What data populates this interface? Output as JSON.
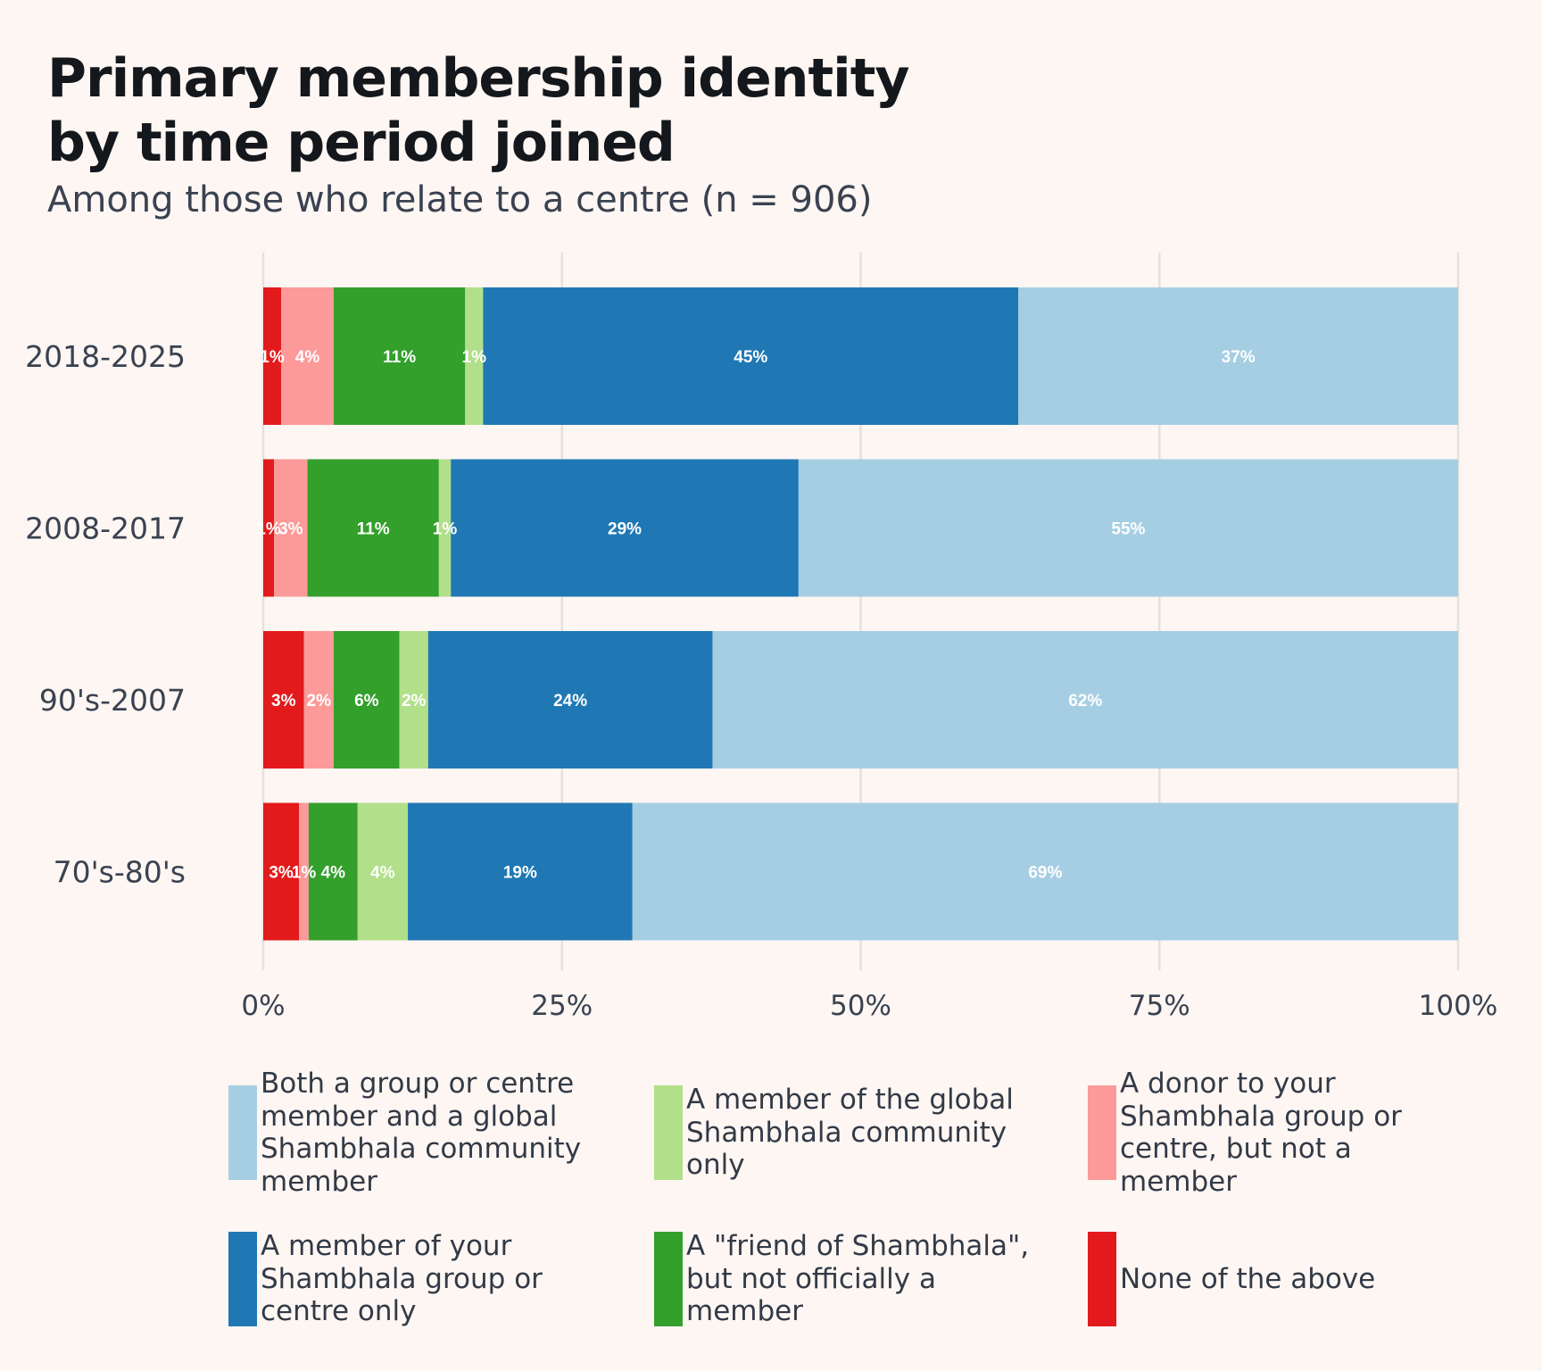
{
  "title_line1": "Primary membership identity",
  "title_line2": "by time period joined",
  "subtitle": "Among those who relate to a centre (n = 906)",
  "chart_data": {
    "type": "bar",
    "orientation": "horizontal",
    "stacked": "percent",
    "title": "Primary membership identity by time period joined",
    "subtitle": "Among those who relate to a centre (n = 906)",
    "xlim": [
      0,
      100
    ],
    "x_ticks": [
      "0%",
      "25%",
      "50%",
      "75%",
      "100%"
    ],
    "x_tick_values": [
      0,
      25,
      50,
      75,
      100
    ],
    "grid": true,
    "legend_position": "bottom",
    "categories": [
      "2018-2025",
      "2008-2017",
      "90's-2007",
      "70's-80's"
    ],
    "series": [
      {
        "name": "None of the above",
        "color": "#e31a1c",
        "values": [
          1.5,
          0.9,
          3.4,
          3.0
        ],
        "labels": [
          "1%",
          "1%",
          "3%",
          "3%"
        ]
      },
      {
        "name": "A donor to your Shambhala group or centre, but not a member",
        "color": "#fb9a99",
        "values": [
          4.4,
          2.8,
          2.5,
          0.8
        ],
        "labels": [
          "4%",
          "3%",
          "2%",
          "1%"
        ]
      },
      {
        "name": "A \"friend of Shambhala\", but not officially a member",
        "color": "#33a02c",
        "values": [
          11.0,
          11.0,
          5.5,
          4.1
        ],
        "labels": [
          "11%",
          "11%",
          "6%",
          "4%"
        ]
      },
      {
        "name": "A member of the global Shambhala community only",
        "color": "#b2df8a",
        "values": [
          1.5,
          1.0,
          2.4,
          4.2
        ],
        "labels": [
          "1%",
          "1%",
          "2%",
          "4%"
        ]
      },
      {
        "name": "A member of your Shambhala group or centre only",
        "color": "#1f78b4",
        "values": [
          44.8,
          29.1,
          23.8,
          18.8
        ],
        "labels": [
          "45%",
          "29%",
          "24%",
          "19%"
        ]
      },
      {
        "name": "Both a group or centre member and a global Shambhala community member",
        "color": "#a6cee3",
        "values": [
          36.8,
          55.2,
          62.4,
          69.1
        ],
        "labels": [
          "37%",
          "55%",
          "62%",
          "69%"
        ]
      }
    ]
  },
  "legend": [
    {
      "label": "Both a group or centre member and a global Shambhala community member",
      "color": "#a6cee3"
    },
    {
      "label": "A member of the global Shambhala community only",
      "color": "#b2df8a"
    },
    {
      "label": "A donor to your Shambhala group or centre, but not a member",
      "color": "#fb9a99"
    },
    {
      "label": "A member of your Shambhala group or centre only",
      "color": "#1f78b4"
    },
    {
      "label": "A \"friend of Shambhala\", but not officially a member",
      "color": "#33a02c"
    },
    {
      "label": "None of the above",
      "color": "#e31a1c"
    }
  ]
}
